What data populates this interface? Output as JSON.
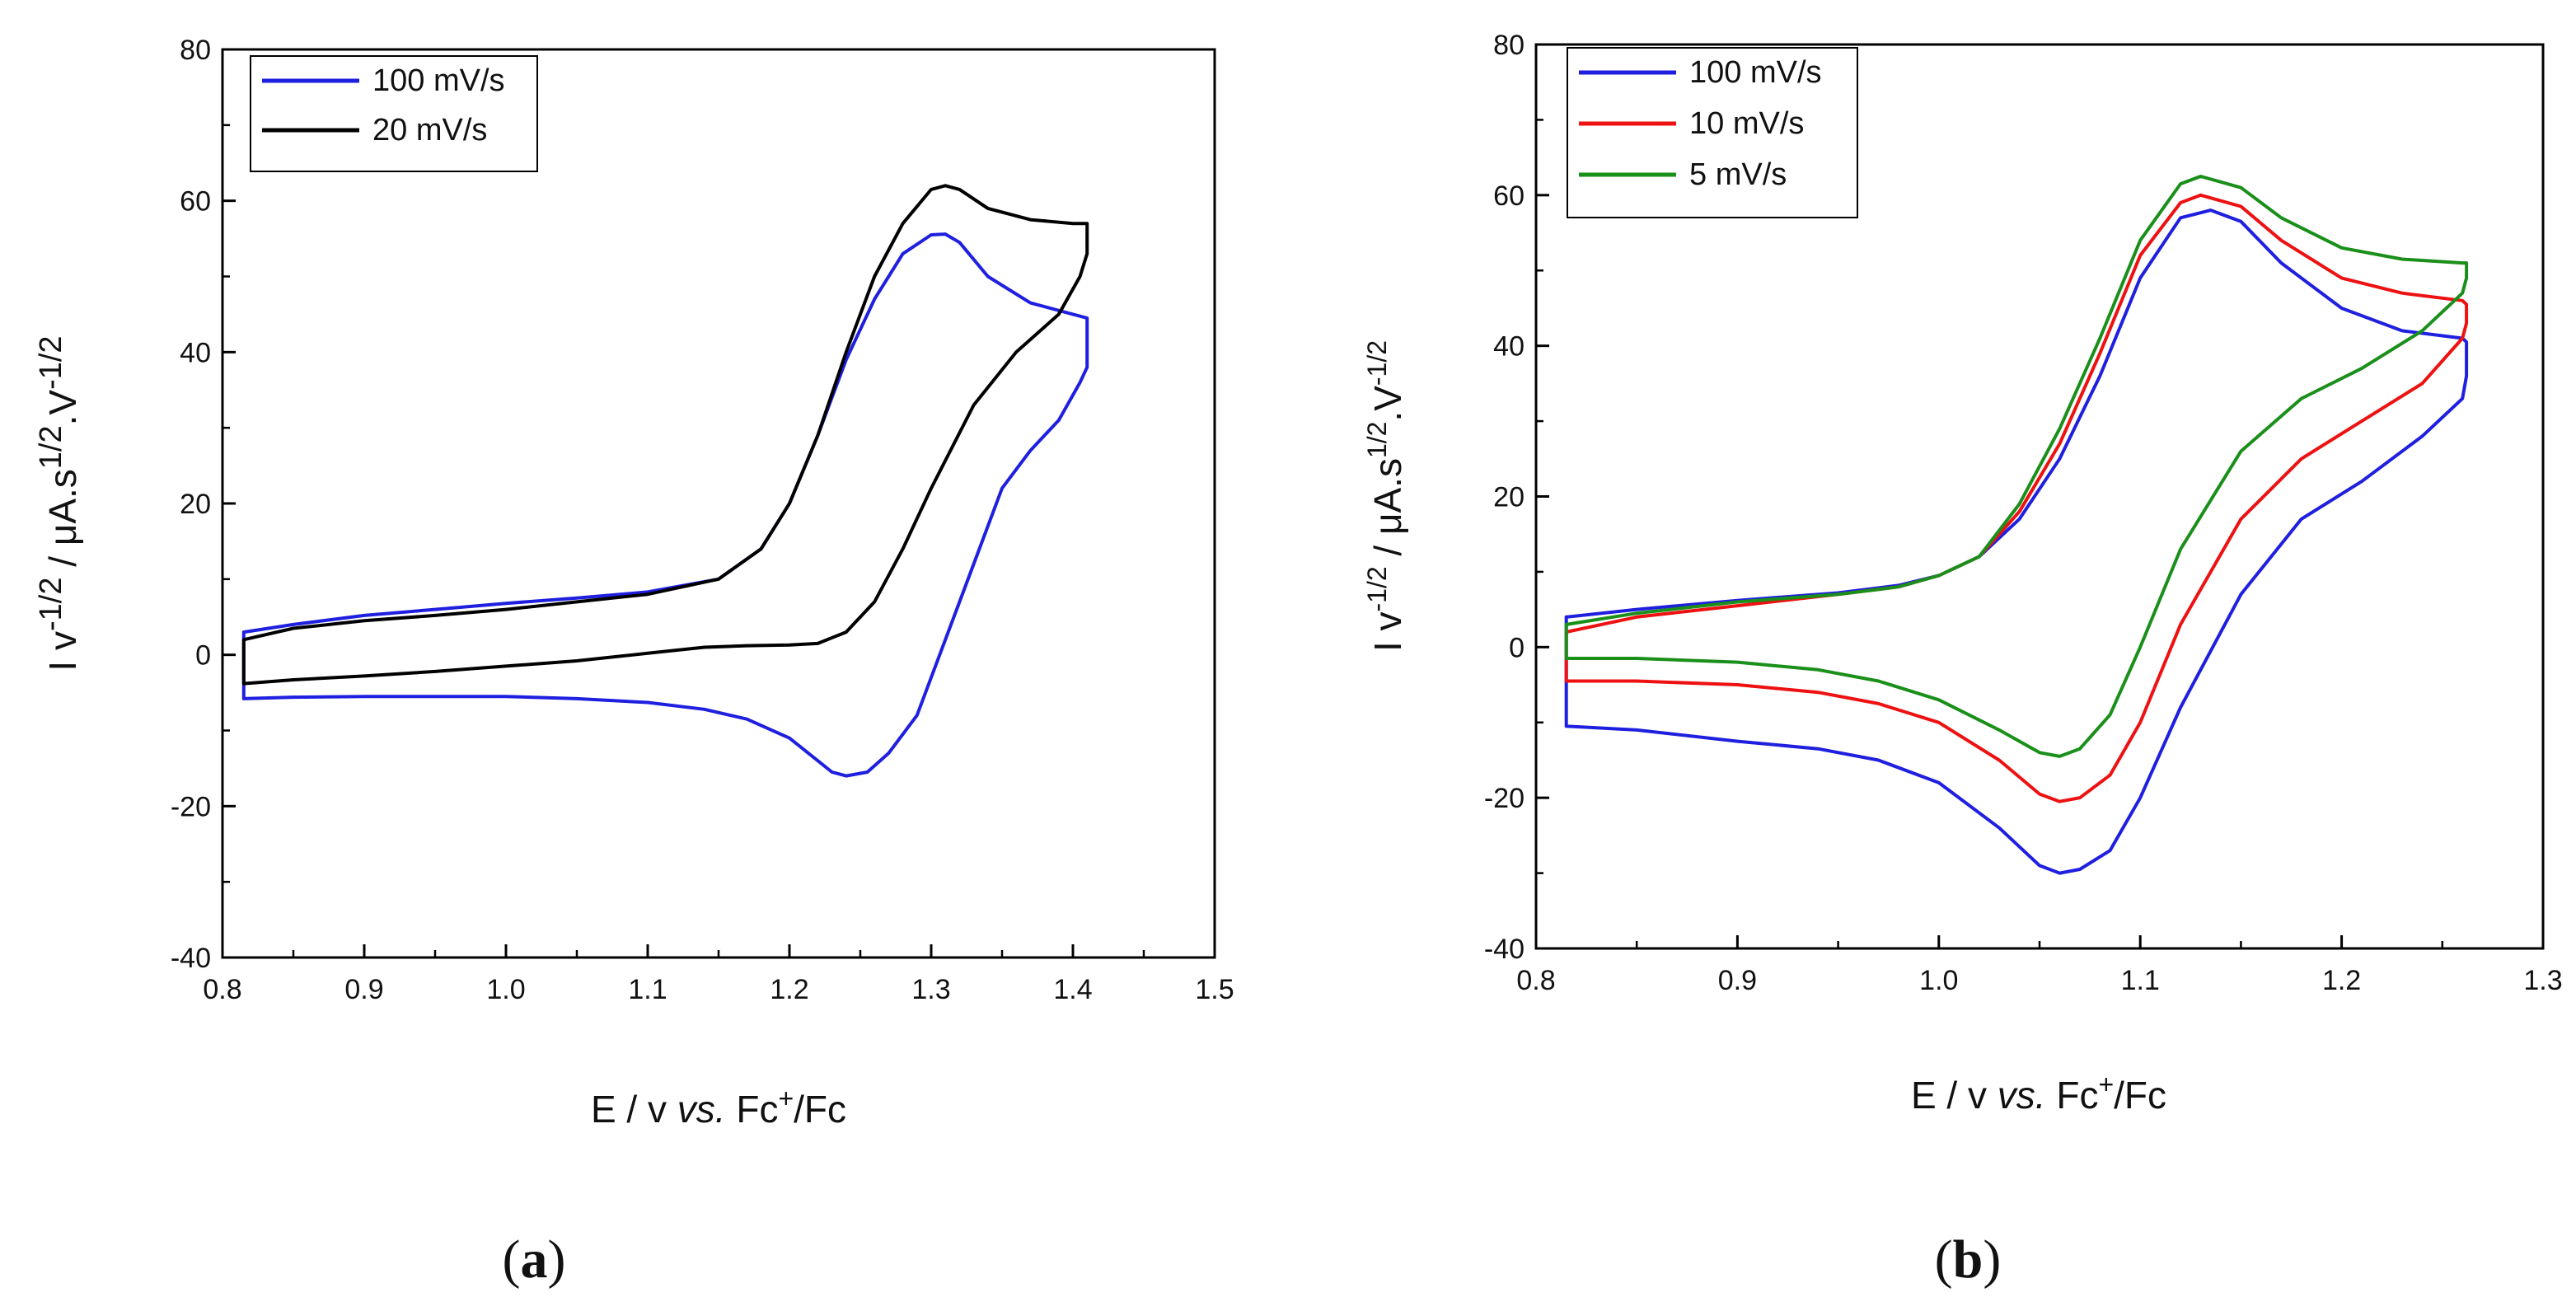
{
  "chart_data": [
    {
      "id": "a",
      "type": "line",
      "panel_label": "(a)",
      "xlabel": {
        "pre": "E / v ",
        "italic": "vs.",
        "mid": " Fc",
        "sup": "+",
        "post": "/Fc"
      },
      "ylabel": {
        "p1": "I v",
        "s1": "-1/2",
        "p2": " / μA.s",
        "s2": "1/2",
        "p3": ".V",
        "s3": "-1/2"
      },
      "xlim": [
        0.8,
        1.5
      ],
      "ylim": [
        -40,
        80
      ],
      "xticks": [
        0.8,
        0.9,
        1.0,
        1.1,
        1.2,
        1.3,
        1.4,
        1.5
      ],
      "xtick_labels": [
        "0.8",
        "0.9",
        "1.0",
        "1.1",
        "1.2",
        "1.3",
        "1.4",
        "1.5"
      ],
      "yticks": [
        -40,
        -20,
        0,
        20,
        40,
        60,
        80
      ],
      "ytick_labels": [
        "-40",
        "-20",
        "0",
        "20",
        "40",
        "60",
        "80"
      ],
      "legend_position": "top-left",
      "series": [
        {
          "name": "100 mV/s",
          "color": "#1f1fe0",
          "x": [
            0.815,
            0.85,
            0.9,
            0.95,
            1.0,
            1.05,
            1.1,
            1.15,
            1.18,
            1.2,
            1.22,
            1.24,
            1.26,
            1.28,
            1.3,
            1.31,
            1.32,
            1.34,
            1.37,
            1.4,
            1.41,
            1.41,
            1.41,
            1.405,
            1.39,
            1.37,
            1.35,
            1.33,
            1.31,
            1.29,
            1.27,
            1.255,
            1.24,
            1.23,
            1.22,
            1.2,
            1.17,
            1.14,
            1.1,
            1.05,
            1.0,
            0.95,
            0.9,
            0.85,
            0.815,
            0.815
          ],
          "y": [
            3,
            4,
            5.2,
            6,
            6.8,
            7.5,
            8.3,
            10,
            14,
            20,
            29,
            39,
            47,
            53,
            55.5,
            55.6,
            54.5,
            50,
            46.5,
            45,
            44.5,
            42,
            38,
            36,
            31,
            27,
            22,
            12,
            2,
            -8,
            -13,
            -15.5,
            -16,
            -15.5,
            -14,
            -11,
            -8.5,
            -7.2,
            -6.3,
            -5.8,
            -5.5,
            -5.5,
            -5.5,
            -5.6,
            -5.8,
            3
          ]
        },
        {
          "name": "20 mV/s",
          "color": "#000000",
          "x": [
            0.815,
            0.85,
            0.9,
            0.95,
            1.0,
            1.05,
            1.1,
            1.15,
            1.18,
            1.2,
            1.22,
            1.24,
            1.26,
            1.28,
            1.3,
            1.31,
            1.32,
            1.34,
            1.37,
            1.4,
            1.41,
            1.41,
            1.405,
            1.39,
            1.36,
            1.33,
            1.3,
            1.28,
            1.26,
            1.24,
            1.22,
            1.2,
            1.17,
            1.14,
            1.1,
            1.05,
            1.0,
            0.95,
            0.9,
            0.85,
            0.815,
            0.815
          ],
          "y": [
            2,
            3.5,
            4.5,
            5.2,
            6,
            7,
            8,
            10,
            14,
            20,
            29,
            40,
            50,
            57,
            61.5,
            62,
            61.5,
            59,
            57.5,
            57,
            57,
            53,
            50,
            45,
            40,
            33,
            22,
            14,
            7,
            3,
            1.5,
            1.3,
            1.2,
            1,
            0.2,
            -0.8,
            -1.5,
            -2.2,
            -2.8,
            -3.3,
            -3.8,
            2
          ]
        }
      ]
    },
    {
      "id": "b",
      "type": "line",
      "panel_label": "(b)",
      "xlabel": {
        "pre": "E / v ",
        "italic": "vs.",
        "mid": " Fc",
        "sup": "+",
        "post": "/Fc"
      },
      "ylabel": {
        "p1": "I v",
        "s1": "-1/2",
        "p2": " / μA.s",
        "s2": "1/2",
        "p3": ".V",
        "s3": "-1/2"
      },
      "xlim": [
        0.8,
        1.3
      ],
      "ylim": [
        -40,
        80
      ],
      "xticks": [
        0.8,
        0.9,
        1.0,
        1.1,
        1.2,
        1.3
      ],
      "xtick_labels": [
        "0.8",
        "0.9",
        "1.0",
        "1.1",
        "1.2",
        "1.3"
      ],
      "yticks": [
        -40,
        -20,
        0,
        20,
        40,
        60,
        80
      ],
      "ytick_labels": [
        "-40",
        "-20",
        "0",
        "20",
        "40",
        "60",
        "80"
      ],
      "legend_position": "top-left",
      "series": [
        {
          "name": "100 mV/s",
          "color": "#1f1fe0",
          "x": [
            0.815,
            0.85,
            0.9,
            0.95,
            0.98,
            1.0,
            1.02,
            1.04,
            1.06,
            1.08,
            1.1,
            1.12,
            1.135,
            1.15,
            1.17,
            1.2,
            1.23,
            1.26,
            1.262,
            1.262,
            1.26,
            1.24,
            1.21,
            1.18,
            1.15,
            1.12,
            1.1,
            1.085,
            1.07,
            1.06,
            1.05,
            1.03,
            1.0,
            0.97,
            0.94,
            0.9,
            0.85,
            0.815,
            0.815
          ],
          "y": [
            4,
            5,
            6.2,
            7.2,
            8.2,
            9.5,
            12,
            17,
            25,
            36,
            49,
            57,
            58,
            56.5,
            51,
            45,
            42,
            41,
            40.5,
            36,
            33,
            28,
            22,
            17,
            7,
            -8,
            -20,
            -27,
            -29.5,
            -30,
            -29,
            -24,
            -18,
            -15,
            -13.5,
            -12.5,
            -11,
            -10.5,
            4
          ]
        },
        {
          "name": "10 mV/s",
          "color": "#ee1111",
          "x": [
            0.815,
            0.85,
            0.9,
            0.95,
            0.98,
            1.0,
            1.02,
            1.04,
            1.06,
            1.08,
            1.1,
            1.12,
            1.13,
            1.15,
            1.17,
            1.2,
            1.23,
            1.26,
            1.262,
            1.262,
            1.26,
            1.24,
            1.21,
            1.18,
            1.15,
            1.12,
            1.1,
            1.085,
            1.07,
            1.06,
            1.05,
            1.03,
            1.0,
            0.97,
            0.94,
            0.9,
            0.85,
            0.815,
            0.815
          ],
          "y": [
            2,
            4,
            5.5,
            7,
            8,
            9.5,
            12,
            18,
            27,
            39,
            52,
            59,
            60,
            58.5,
            54,
            49,
            47,
            46,
            45.5,
            43,
            41,
            35,
            30,
            25,
            17,
            3,
            -10,
            -17,
            -20,
            -20.5,
            -19.5,
            -15,
            -10,
            -7.5,
            -6,
            -5,
            -4.5,
            -4.5,
            2
          ]
        },
        {
          "name": "5 mV/s",
          "color": "#1a8f1a",
          "x": [
            0.815,
            0.85,
            0.9,
            0.95,
            0.98,
            1.0,
            1.02,
            1.04,
            1.06,
            1.08,
            1.1,
            1.12,
            1.13,
            1.15,
            1.17,
            1.2,
            1.23,
            1.26,
            1.262,
            1.262,
            1.26,
            1.24,
            1.21,
            1.18,
            1.15,
            1.12,
            1.1,
            1.085,
            1.07,
            1.06,
            1.05,
            1.03,
            1.0,
            0.97,
            0.94,
            0.9,
            0.85,
            0.815,
            0.815
          ],
          "y": [
            3,
            4.5,
            6,
            7,
            8,
            9.5,
            12,
            19,
            29,
            41,
            54,
            61.5,
            62.5,
            61,
            57,
            53,
            51.5,
            51,
            51,
            49,
            47,
            42,
            37,
            33,
            26,
            13,
            0,
            -9,
            -13.5,
            -14.5,
            -14,
            -11,
            -7,
            -4.5,
            -3,
            -2,
            -1.5,
            -1.5,
            3
          ]
        }
      ]
    }
  ]
}
